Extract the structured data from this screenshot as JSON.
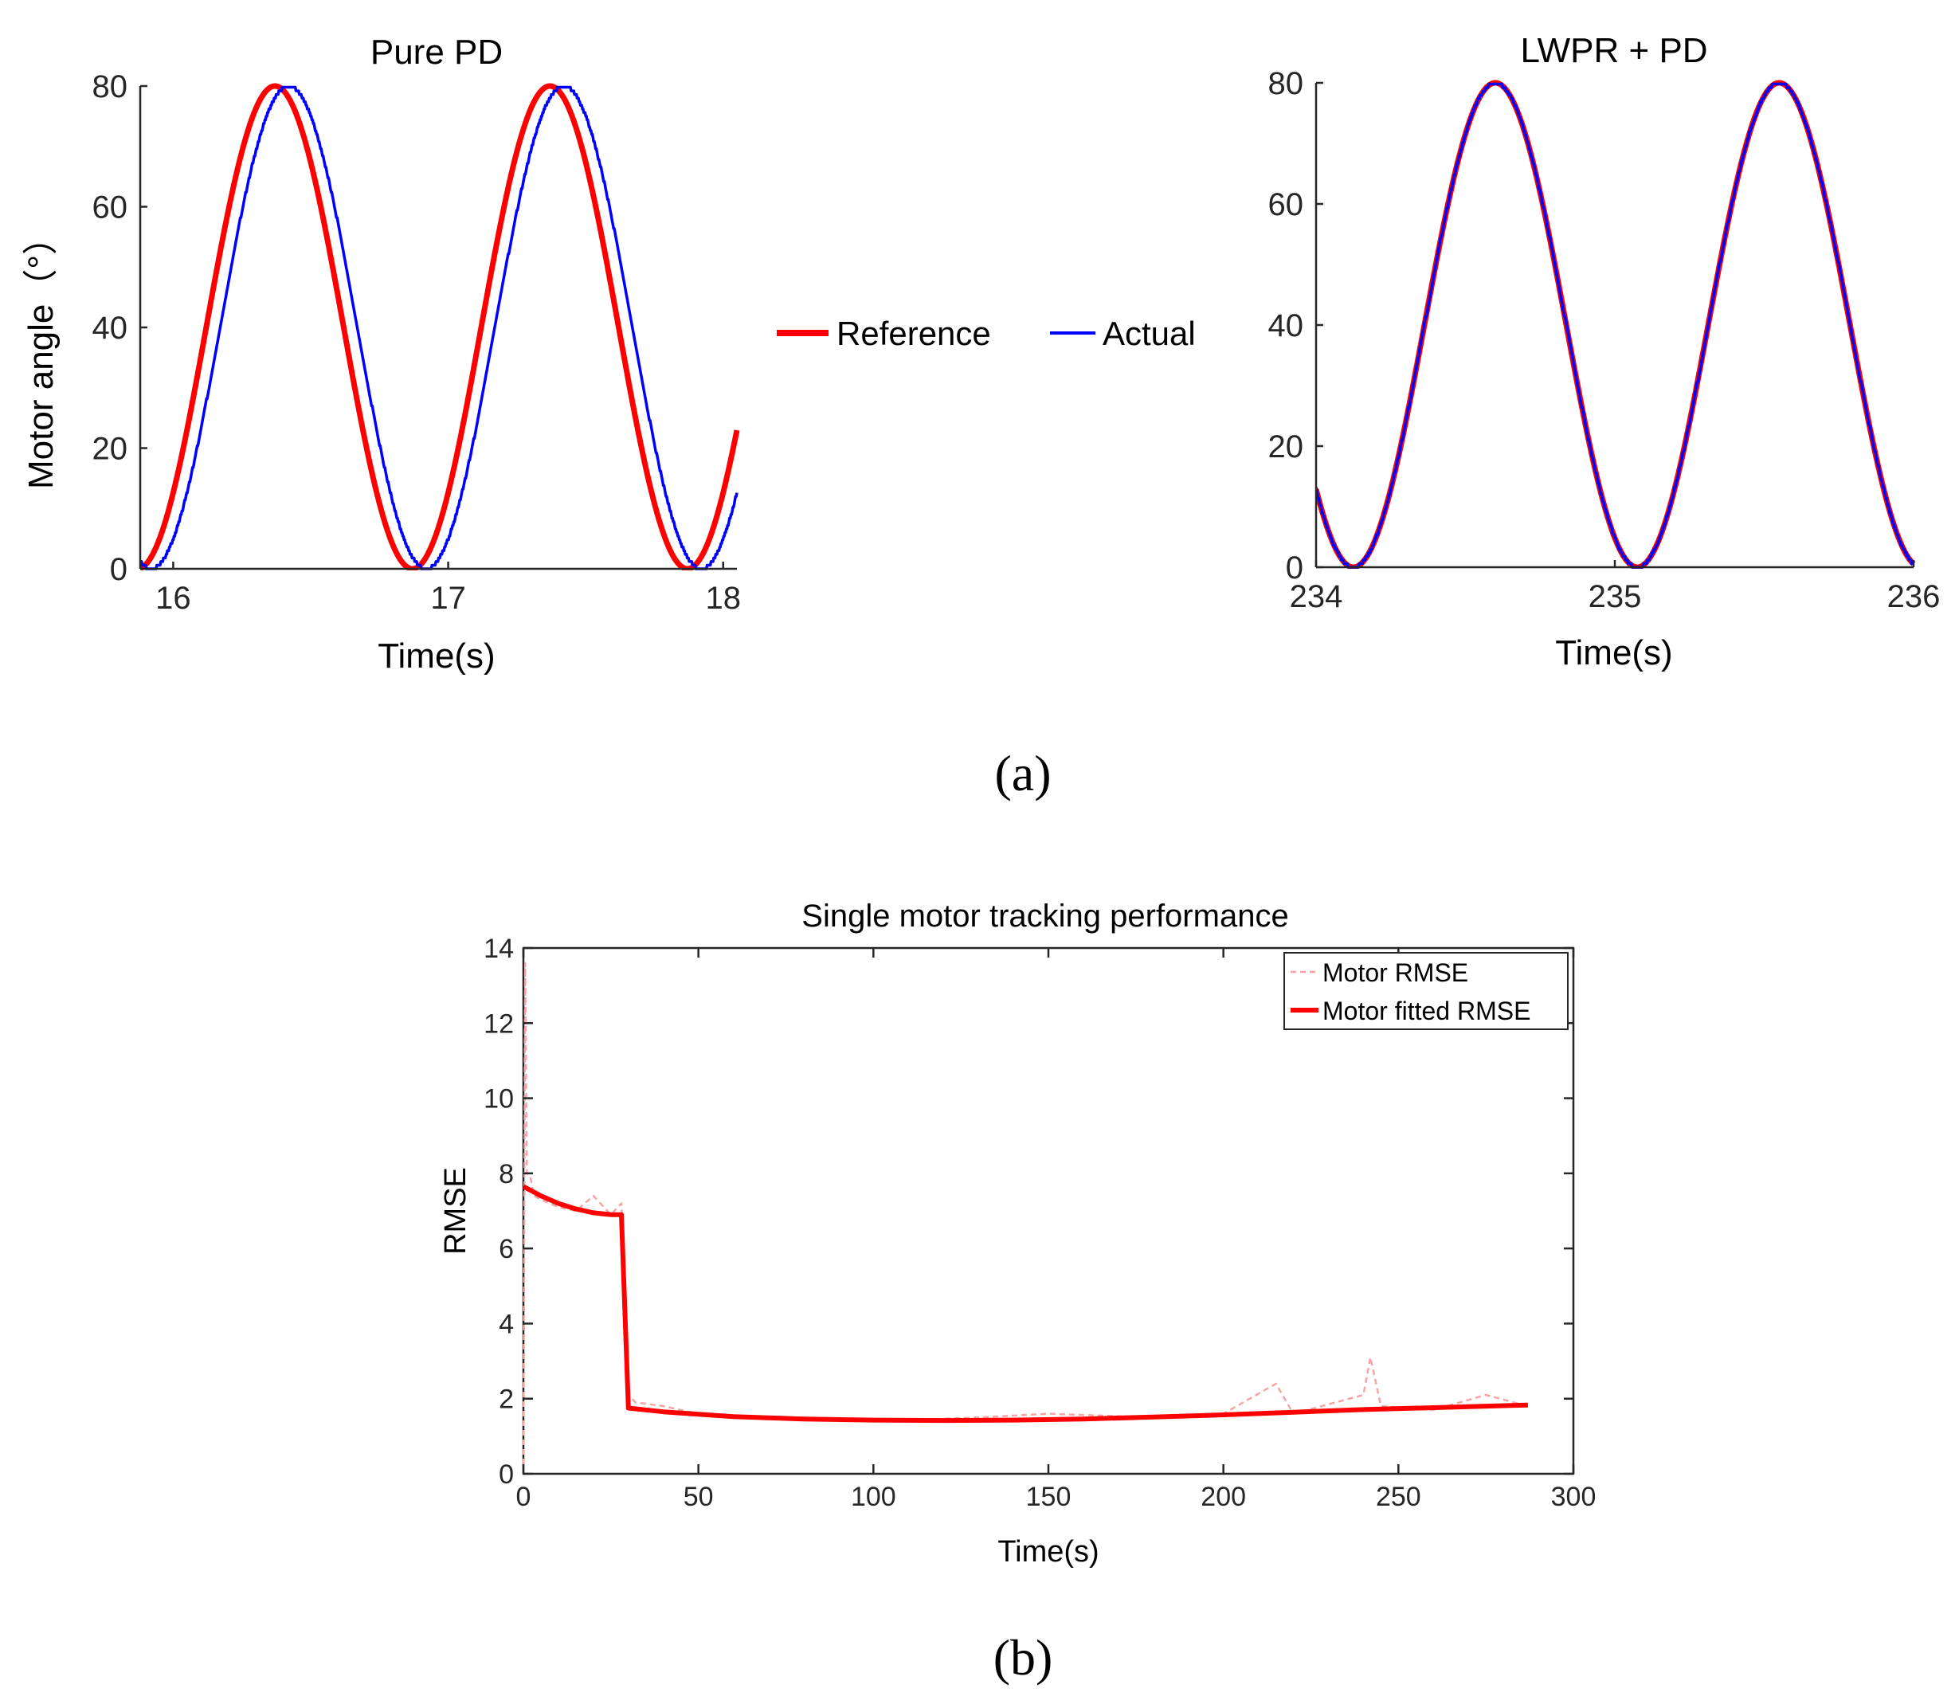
{
  "chart_data": [
    {
      "type": "line",
      "title": "Pure PD",
      "xlabel": "Time(s)",
      "ylabel": "Motor angle（°）",
      "xlim": [
        15.88,
        18.05
      ],
      "ylim": [
        0,
        80
      ],
      "xticks": [
        16,
        17,
        18
      ],
      "yticks": [
        0,
        20,
        40,
        60,
        80
      ],
      "grid": false,
      "series": [
        {
          "name": "Reference",
          "color": "#ff0000",
          "amplitude": 40,
          "offset": 40,
          "period_s": 1.0,
          "peak_time_s": 16.37,
          "phase_lag_s": 0
        },
        {
          "name": "Actual",
          "color": "#0000ff",
          "amplitude": 40,
          "offset": 40,
          "period_s": 1.0,
          "peak_time_s": 16.42,
          "phase_lag_s": 0.06
        }
      ]
    },
    {
      "type": "line",
      "title": "LWPR + PD",
      "xlabel": "Time(s)",
      "ylabel": "",
      "xlim": [
        234,
        236
      ],
      "ylim": [
        0,
        80
      ],
      "xticks": [
        234,
        235,
        236
      ],
      "yticks": [
        0,
        20,
        40,
        60,
        80
      ],
      "grid": false,
      "series": [
        {
          "name": "Reference",
          "color": "#ff0000",
          "amplitude": 40,
          "offset": 40,
          "period_s": 0.95,
          "peak_time_s": 234.6,
          "phase_lag_s": 0
        },
        {
          "name": "Actual",
          "color": "#0000ff",
          "amplitude": 40,
          "offset": 40,
          "period_s": 0.95,
          "peak_time_s": 234.6,
          "phase_lag_s": 0.005
        }
      ]
    },
    {
      "type": "line",
      "title": "Single motor tracking performance",
      "xlabel": "Time(s)",
      "ylabel": "RMSE",
      "xlim": [
        0,
        300
      ],
      "ylim": [
        0,
        14
      ],
      "xticks": [
        0,
        50,
        100,
        150,
        200,
        250,
        300
      ],
      "yticks": [
        0,
        2,
        4,
        6,
        8,
        10,
        12,
        14
      ],
      "grid": false,
      "legend_position": "top-right",
      "series": [
        {
          "name": "Motor RMSE",
          "color": "#f4a6a6",
          "style": "dashed",
          "x": [
            0,
            0.5,
            1,
            2,
            3,
            5,
            10,
            15,
            20,
            25,
            28,
            29,
            30,
            32,
            40,
            50,
            60,
            80,
            100,
            130,
            150,
            180,
            200,
            215,
            220,
            240,
            242,
            245,
            260,
            275,
            287
          ],
          "y": [
            0,
            13.6,
            8.0,
            7.9,
            7.4,
            7.3,
            7.1,
            7.0,
            7.4,
            6.9,
            7.2,
            5.0,
            2.1,
            1.9,
            1.8,
            1.6,
            1.5,
            1.5,
            1.4,
            1.5,
            1.6,
            1.5,
            1.6,
            2.4,
            1.6,
            2.1,
            3.1,
            1.8,
            1.7,
            2.1,
            1.8
          ]
        },
        {
          "name": "Motor fitted RMSE",
          "color": "#ff0000",
          "style": "solid",
          "x": [
            0,
            5,
            10,
            15,
            20,
            25,
            28,
            30,
            40,
            60,
            80,
            100,
            120,
            140,
            160,
            180,
            200,
            220,
            240,
            260,
            287
          ],
          "y": [
            7.65,
            7.4,
            7.2,
            7.05,
            6.95,
            6.9,
            6.9,
            1.75,
            1.65,
            1.52,
            1.46,
            1.43,
            1.42,
            1.43,
            1.46,
            1.51,
            1.57,
            1.64,
            1.71,
            1.76,
            1.83
          ]
        }
      ]
    }
  ],
  "legend_a": {
    "reference": "Reference",
    "actual": "Actual"
  },
  "captions": {
    "a": "(a)",
    "b": "(b)"
  }
}
